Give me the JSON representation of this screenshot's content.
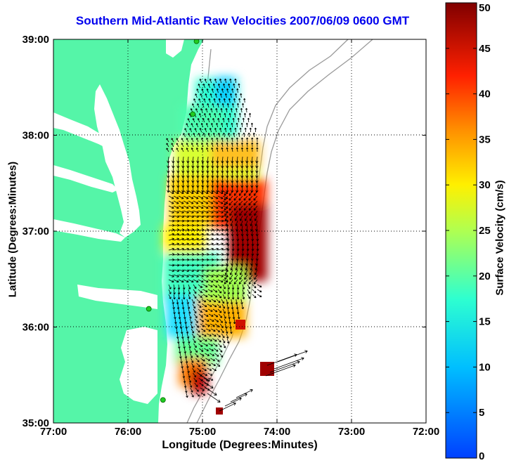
{
  "title": "Southern Mid-Atlantic Raw Velocities 2007/06/09 0600 GMT",
  "x_axis": {
    "label": "Longitude (Degrees:Minutes)",
    "ticks": [
      {
        "value": -77,
        "label": "77:00"
      },
      {
        "value": -76,
        "label": "76:00"
      },
      {
        "value": -75,
        "label": "75:00"
      },
      {
        "value": -74,
        "label": "74:00"
      },
      {
        "value": -73,
        "label": "73:00"
      },
      {
        "value": -72,
        "label": "72:00"
      }
    ]
  },
  "y_axis": {
    "label": "Latitude (Degrees:Minutes)",
    "ticks": [
      {
        "value": 35,
        "label": "35:00"
      },
      {
        "value": 36,
        "label": "36:00"
      },
      {
        "value": 37,
        "label": "37:00"
      },
      {
        "value": 38,
        "label": "38:00"
      },
      {
        "value": 39,
        "label": "39:00"
      }
    ]
  },
  "colorbar": {
    "label": "Surface Velocity (cm/s)",
    "range": [
      0,
      50
    ],
    "ticks": [
      "0",
      "5",
      "10",
      "15",
      "20",
      "25",
      "30",
      "35",
      "40",
      "45",
      "50"
    ],
    "colormap": "jet"
  },
  "colors": {
    "land": "#55f5a8",
    "water": "#ffffff",
    "title": "#0000ee",
    "grid": "#000000",
    "bathymetry": "#9a9a9a",
    "station_marker": "#22cc22"
  },
  "grid": "dotted",
  "stations": [
    {
      "lon": -75.08,
      "lat": 38.98
    },
    {
      "lon": -75.13,
      "lat": 38.22
    },
    {
      "lon": -75.72,
      "lat": 36.19
    },
    {
      "lon": -75.53,
      "lat": 35.24
    }
  ]
}
